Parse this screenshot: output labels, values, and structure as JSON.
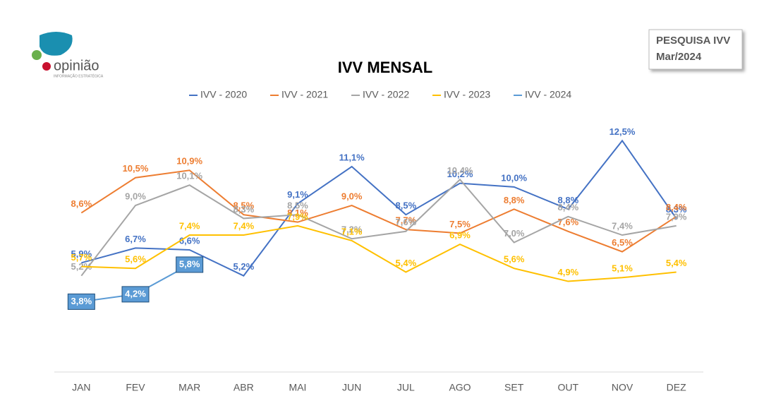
{
  "logo": {
    "name": "opinião",
    "tagline": "INFORMAÇÃO ESTRATÉGICA"
  },
  "badge": {
    "line1": "PESQUISA IVV",
    "line2": "Mar/2024"
  },
  "chart_data": {
    "type": "line",
    "title": "IVV MENSAL",
    "categories": [
      "JAN",
      "FEV",
      "MAR",
      "ABR",
      "MAI",
      "JUN",
      "JUL",
      "AGO",
      "SET",
      "OUT",
      "NOV",
      "DEZ"
    ],
    "ylim": [
      0,
      14
    ],
    "series": [
      {
        "name": "IVV - 2020",
        "color": "#4472c4",
        "values": [
          5.9,
          6.7,
          6.6,
          5.2,
          9.1,
          11.1,
          8.5,
          10.2,
          10.0,
          8.8,
          12.5,
          8.3
        ],
        "value_labels": [
          "5,9%",
          "6,7%",
          "6,6%",
          "5,2%",
          "9,1%",
          "11,1%",
          "8,5%",
          "10,2%",
          "10,0%",
          "8,8%",
          "12,5%",
          "8,3%"
        ]
      },
      {
        "name": "IVV - 2021",
        "color": "#ed7d31",
        "values": [
          8.6,
          10.5,
          10.9,
          8.5,
          8.1,
          9.0,
          7.7,
          7.5,
          8.8,
          7.6,
          6.5,
          8.4
        ],
        "value_labels": [
          "8,6%",
          "10,5%",
          "10,9%",
          "8,5%",
          "8,1%",
          "9,0%",
          "7,7%",
          "7,5%",
          "8,8%",
          "7,6%",
          "6,5%",
          "8,4%"
        ]
      },
      {
        "name": "IVV - 2022",
        "color": "#a5a5a5",
        "values": [
          5.2,
          9.0,
          10.1,
          8.3,
          8.5,
          7.2,
          7.6,
          10.4,
          7.0,
          8.4,
          7.4,
          7.9
        ],
        "value_labels": [
          "5,2%",
          "9,0%",
          "10,1%",
          "8,3%",
          "8,5%",
          "7,2%",
          "7,6%",
          "10,4%",
          "7,0%",
          "8,4%",
          "7,4%",
          "7,9%"
        ]
      },
      {
        "name": "IVV - 2023",
        "color": "#ffc000",
        "values": [
          5.7,
          5.6,
          7.4,
          7.4,
          7.9,
          7.1,
          5.4,
          6.9,
          5.6,
          4.9,
          5.1,
          5.4
        ],
        "value_labels": [
          "5,7%",
          "5,6%",
          "7,4%",
          "7,4%",
          "7,9%",
          "7,1%",
          "5,4%",
          "6,9%",
          "5,6%",
          "4,9%",
          "5,1%",
          "5,4%"
        ]
      },
      {
        "name": "IVV - 2024",
        "color": "#5b9bd5",
        "values": [
          3.8,
          4.2,
          5.8,
          null,
          null,
          null,
          null,
          null,
          null,
          null,
          null,
          null
        ],
        "value_labels": [
          "3,8%",
          "4,2%",
          "5,8%",
          null,
          null,
          null,
          null,
          null,
          null,
          null,
          null,
          null
        ]
      }
    ]
  }
}
